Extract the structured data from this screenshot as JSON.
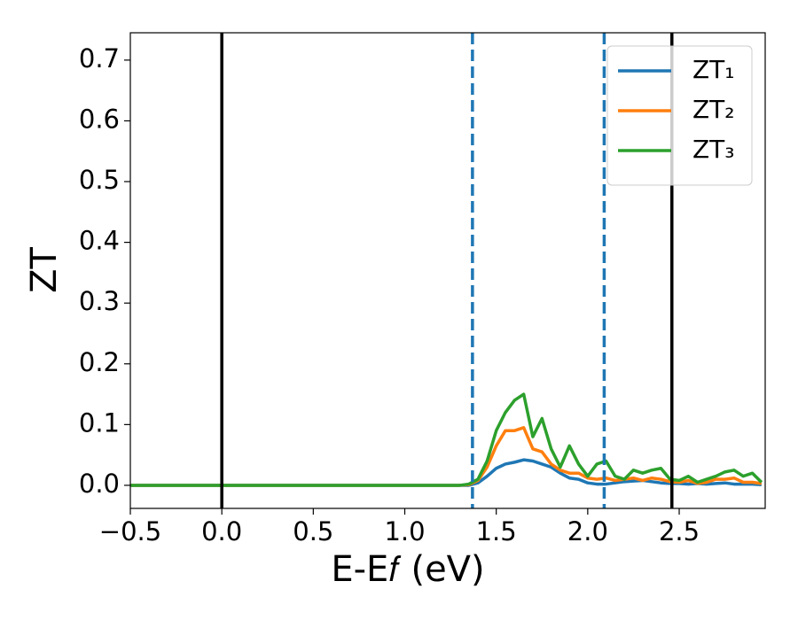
{
  "chart_data": {
    "type": "line",
    "xlabel": "E-E𝑓 (eV)",
    "ylabel": "ZT",
    "xlim": [
      -0.5,
      2.97
    ],
    "ylim": [
      -0.038,
      0.745
    ],
    "xticks": [
      {
        "value": -0.5,
        "label": "−0.5"
      },
      {
        "value": 0,
        "label": "0.0"
      },
      0.5,
      {
        "value": 1,
        "label": "1.0"
      },
      1.5,
      {
        "value": 2,
        "label": "2.0"
      },
      2.5
    ],
    "yticks": [
      {
        "value": 0,
        "label": "0.0"
      },
      0.1,
      0.2,
      0.3,
      0.4,
      0.5,
      0.6,
      0.7
    ],
    "legend": "upper right",
    "vlines": [
      {
        "x": 0,
        "color": "#000000",
        "style": "solid"
      },
      {
        "x": 1.37,
        "color": "#1f77b4",
        "style": "dashed"
      },
      {
        "x": 2.09,
        "color": "#1f77b4",
        "style": "dashed"
      },
      {
        "x": 2.46,
        "color": "#000000",
        "style": "solid"
      }
    ],
    "x": [
      -0.5,
      1.3,
      1.35,
      1.4,
      1.45,
      1.5,
      1.55,
      1.6,
      1.65,
      1.7,
      1.75,
      1.8,
      1.85,
      1.9,
      1.95,
      2.0,
      2.05,
      2.1,
      2.15,
      2.2,
      2.25,
      2.3,
      2.35,
      2.4,
      2.45,
      2.5,
      2.55,
      2.6,
      2.65,
      2.7,
      2.75,
      2.8,
      2.85,
      2.9,
      2.95
    ],
    "series": [
      {
        "name": "ZT₁",
        "color": "#1f77b4",
        "values": [
          0,
          0,
          0.0,
          0.004,
          0.015,
          0.028,
          0.035,
          0.038,
          0.042,
          0.04,
          0.035,
          0.03,
          0.02,
          0.012,
          0.01,
          0.004,
          0.002,
          0.002,
          0.004,
          0.006,
          0.007,
          0.008,
          0.006,
          0.004,
          0.003,
          0.003,
          0.002,
          0.003,
          0.002,
          0.003,
          0.004,
          0.002,
          0.002,
          0.002,
          0.001
        ]
      },
      {
        "name": "ZT₂",
        "color": "#ff7f0e",
        "values": [
          0,
          0,
          0.001,
          0.008,
          0.03,
          0.065,
          0.09,
          0.09,
          0.095,
          0.06,
          0.055,
          0.035,
          0.025,
          0.02,
          0.02,
          0.012,
          0.01,
          0.012,
          0.008,
          0.01,
          0.012,
          0.008,
          0.012,
          0.01,
          0.006,
          0.005,
          0.008,
          0.003,
          0.005,
          0.01,
          0.01,
          0.012,
          0.005,
          0.005,
          0.003
        ]
      },
      {
        "name": "ZT₃",
        "color": "#2ca02c",
        "values": [
          0,
          0,
          0.002,
          0.01,
          0.04,
          0.09,
          0.12,
          0.14,
          0.15,
          0.08,
          0.11,
          0.06,
          0.03,
          0.065,
          0.035,
          0.015,
          0.035,
          0.04,
          0.015,
          0.01,
          0.025,
          0.02,
          0.025,
          0.028,
          0.01,
          0.008,
          0.015,
          0.005,
          0.01,
          0.015,
          0.022,
          0.025,
          0.015,
          0.02,
          0.005
        ]
      }
    ]
  }
}
